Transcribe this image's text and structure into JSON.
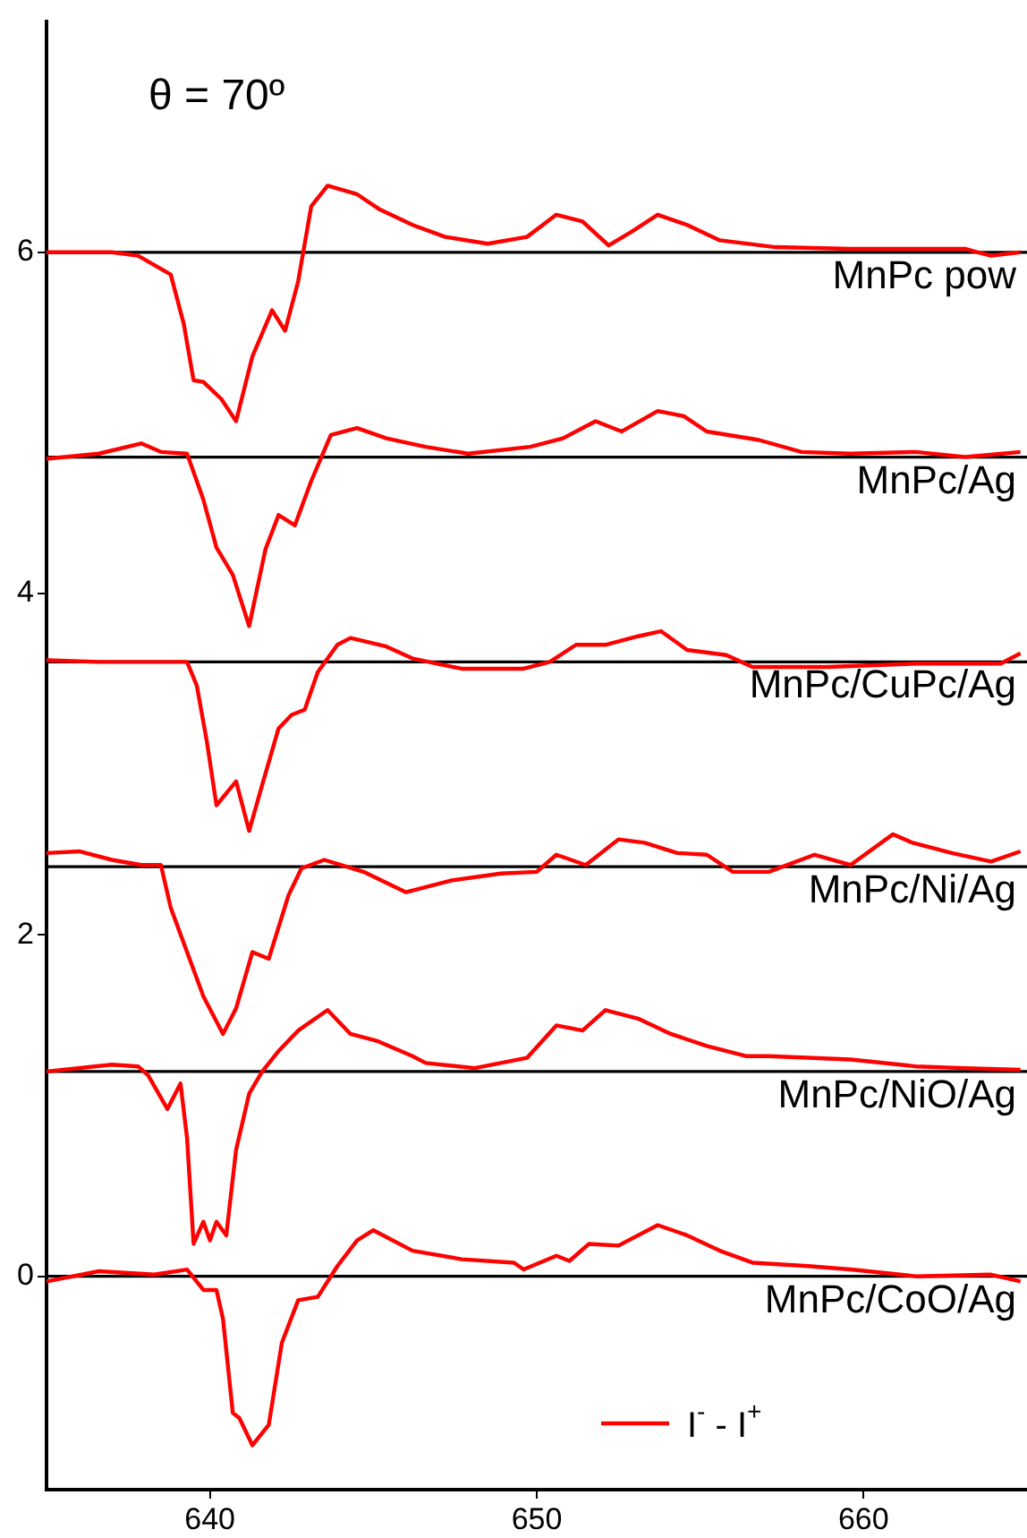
{
  "chart_data": {
    "type": "line",
    "xlim": [
      635,
      665
    ],
    "xticks": [
      640,
      650,
      660
    ],
    "ylim": [
      -1.25,
      7.35
    ],
    "yticks": [
      0,
      2,
      4,
      6
    ],
    "grid": false,
    "legend": "bottom right",
    "marker": "none",
    "line_style": "solid",
    "annotations": [
      "θ = 70º"
    ],
    "ref_lines": [
      {
        "axis": "y",
        "value": 6,
        "label": "MnPc pow",
        "color": "#000000"
      },
      {
        "axis": "y",
        "value": 4.8,
        "label": "MnPc/Ag",
        "color": "#000000"
      },
      {
        "axis": "y",
        "value": 3.6,
        "label": "MnPc/CuPc/Ag",
        "color": "#000000"
      },
      {
        "axis": "y",
        "value": 2.4,
        "label": "MnPc/Ni/Ag",
        "color": "#000000"
      },
      {
        "axis": "y",
        "value": 1.2,
        "label": "MnPc/NiO/Ag",
        "color": "#000000"
      },
      {
        "axis": "y",
        "value": 0,
        "label": "MnPc/CoO/Ag",
        "color": "#000000"
      }
    ],
    "series": [
      {
        "name": "I$^{-}$ - I$^{+}$",
        "color": "#ff0000",
        "x": [
          635,
          637,
          637.8,
          638.8,
          639.2,
          639.5,
          639.8,
          640.35,
          640.8,
          641.3,
          641.9,
          642.3,
          642.7,
          643.1,
          643.6,
          644.5,
          645.2,
          646.2,
          647.2,
          648.5,
          649.7,
          650.6,
          651.4,
          652.2,
          652.9,
          653.7,
          654.6,
          655.6,
          657.3,
          659.6,
          663.1,
          663.5,
          663.9,
          664.8
        ],
        "values": [
          6.0,
          6.0,
          5.98,
          5.87,
          5.58,
          5.25,
          5.24,
          5.14,
          5.01,
          5.39,
          5.66,
          5.54,
          5.83,
          6.27,
          6.39,
          6.34,
          6.25,
          6.16,
          6.09,
          6.05,
          6.09,
          6.22,
          6.18,
          6.04,
          6.12,
          6.22,
          6.16,
          6.07,
          6.03,
          6.02,
          6.02,
          6.0,
          5.98,
          6.0
        ]
      },
      {
        "color": "#ff0000",
        "x": [
          635,
          636.6,
          637.9,
          638.5,
          639.3,
          639.8,
          640.2,
          640.7,
          641.2,
          641.7,
          642.1,
          642.6,
          643.1,
          643.7,
          644.5,
          645.4,
          646.6,
          647.9,
          649.8,
          650.8,
          651.8,
          652.6,
          653.7,
          654.5,
          655.2,
          656.8,
          658.1,
          659.6,
          661.6,
          663.1,
          664.8
        ],
        "values": [
          4.79,
          4.82,
          4.88,
          4.83,
          4.82,
          4.55,
          4.27,
          4.11,
          3.81,
          4.26,
          4.46,
          4.4,
          4.66,
          4.93,
          4.97,
          4.91,
          4.86,
          4.82,
          4.86,
          4.91,
          5.01,
          4.95,
          5.07,
          5.04,
          4.95,
          4.9,
          4.83,
          4.82,
          4.83,
          4.8,
          4.83
        ]
      },
      {
        "color": "#ff0000",
        "x": [
          635,
          636.6,
          639.3,
          639.6,
          639.9,
          640.2,
          640.8,
          641.2,
          641.6,
          642.1,
          642.5,
          642.9,
          643.3,
          643.9,
          644.3,
          645.4,
          646.2,
          647.7,
          649.6,
          650.4,
          651.2,
          652.1,
          653.1,
          653.8,
          654.6,
          655.8,
          656.6,
          658.9,
          661.6,
          664.2,
          664.8
        ],
        "values": [
          3.61,
          3.6,
          3.6,
          3.46,
          3.14,
          2.76,
          2.9,
          2.61,
          2.88,
          3.21,
          3.29,
          3.32,
          3.54,
          3.7,
          3.74,
          3.69,
          3.62,
          3.56,
          3.56,
          3.6,
          3.7,
          3.7,
          3.75,
          3.78,
          3.67,
          3.64,
          3.57,
          3.57,
          3.59,
          3.59,
          3.65
        ]
      },
      {
        "color": "#ff0000",
        "x": [
          635,
          636,
          637,
          637.9,
          638.5,
          638.8,
          639.3,
          639.8,
          640.4,
          640.8,
          641.3,
          641.8,
          642.4,
          642.8,
          643.5,
          644.7,
          646,
          647.4,
          648.9,
          650,
          650.6,
          651.5,
          652.5,
          653.3,
          654.3,
          655.2,
          656,
          657.1,
          658.5,
          659.6,
          660.9,
          661.5,
          662.7,
          663.9,
          664.8
        ],
        "values": [
          2.48,
          2.49,
          2.44,
          2.41,
          2.41,
          2.16,
          1.9,
          1.64,
          1.42,
          1.57,
          1.9,
          1.86,
          2.23,
          2.39,
          2.44,
          2.37,
          2.25,
          2.32,
          2.36,
          2.37,
          2.47,
          2.41,
          2.56,
          2.54,
          2.48,
          2.47,
          2.37,
          2.37,
          2.47,
          2.41,
          2.59,
          2.54,
          2.48,
          2.43,
          2.49
        ]
      },
      {
        "color": "#ff0000",
        "x": [
          635,
          637,
          637.8,
          638.1,
          638.7,
          639.1,
          639.3,
          639.5,
          639.8,
          640,
          640.2,
          640.5,
          640.8,
          641.2,
          641.6,
          642.1,
          642.7,
          643.6,
          644.3,
          645.1,
          646.2,
          646.6,
          648.1,
          649.7,
          650.6,
          651.4,
          652.1,
          653.1,
          654.1,
          655.2,
          656.4,
          657.1,
          659.6,
          661.6,
          663.1,
          664.8
        ],
        "values": [
          1.2,
          1.24,
          1.23,
          1.18,
          0.98,
          1.13,
          0.81,
          0.19,
          0.32,
          0.21,
          0.32,
          0.24,
          0.74,
          1.07,
          1.2,
          1.32,
          1.44,
          1.56,
          1.42,
          1.38,
          1.29,
          1.25,
          1.22,
          1.28,
          1.47,
          1.44,
          1.56,
          1.51,
          1.42,
          1.35,
          1.29,
          1.29,
          1.27,
          1.23,
          1.22,
          1.21
        ]
      },
      {
        "color": "#ff0000",
        "x": [
          635,
          636.6,
          638.3,
          639.3,
          639.8,
          640.2,
          640.4,
          640.7,
          640.9,
          641.3,
          641.8,
          642.2,
          642.7,
          643.3,
          643.9,
          644.5,
          645,
          646.2,
          647.7,
          649.3,
          649.6,
          650.6,
          651,
          651.6,
          652.5,
          653.7,
          654.6,
          655.6,
          656.6,
          658.3,
          659.6,
          661.6,
          663.9,
          664.8
        ],
        "values": [
          -0.03,
          0.03,
          0.01,
          0.04,
          -0.08,
          -0.08,
          -0.25,
          -0.8,
          -0.83,
          -0.99,
          -0.87,
          -0.39,
          -0.14,
          -0.12,
          0.06,
          0.21,
          0.27,
          0.15,
          0.1,
          0.08,
          0.04,
          0.12,
          0.09,
          0.19,
          0.18,
          0.3,
          0.24,
          0.15,
          0.08,
          0.06,
          0.04,
          0,
          0.01,
          -0.03
        ]
      }
    ]
  }
}
